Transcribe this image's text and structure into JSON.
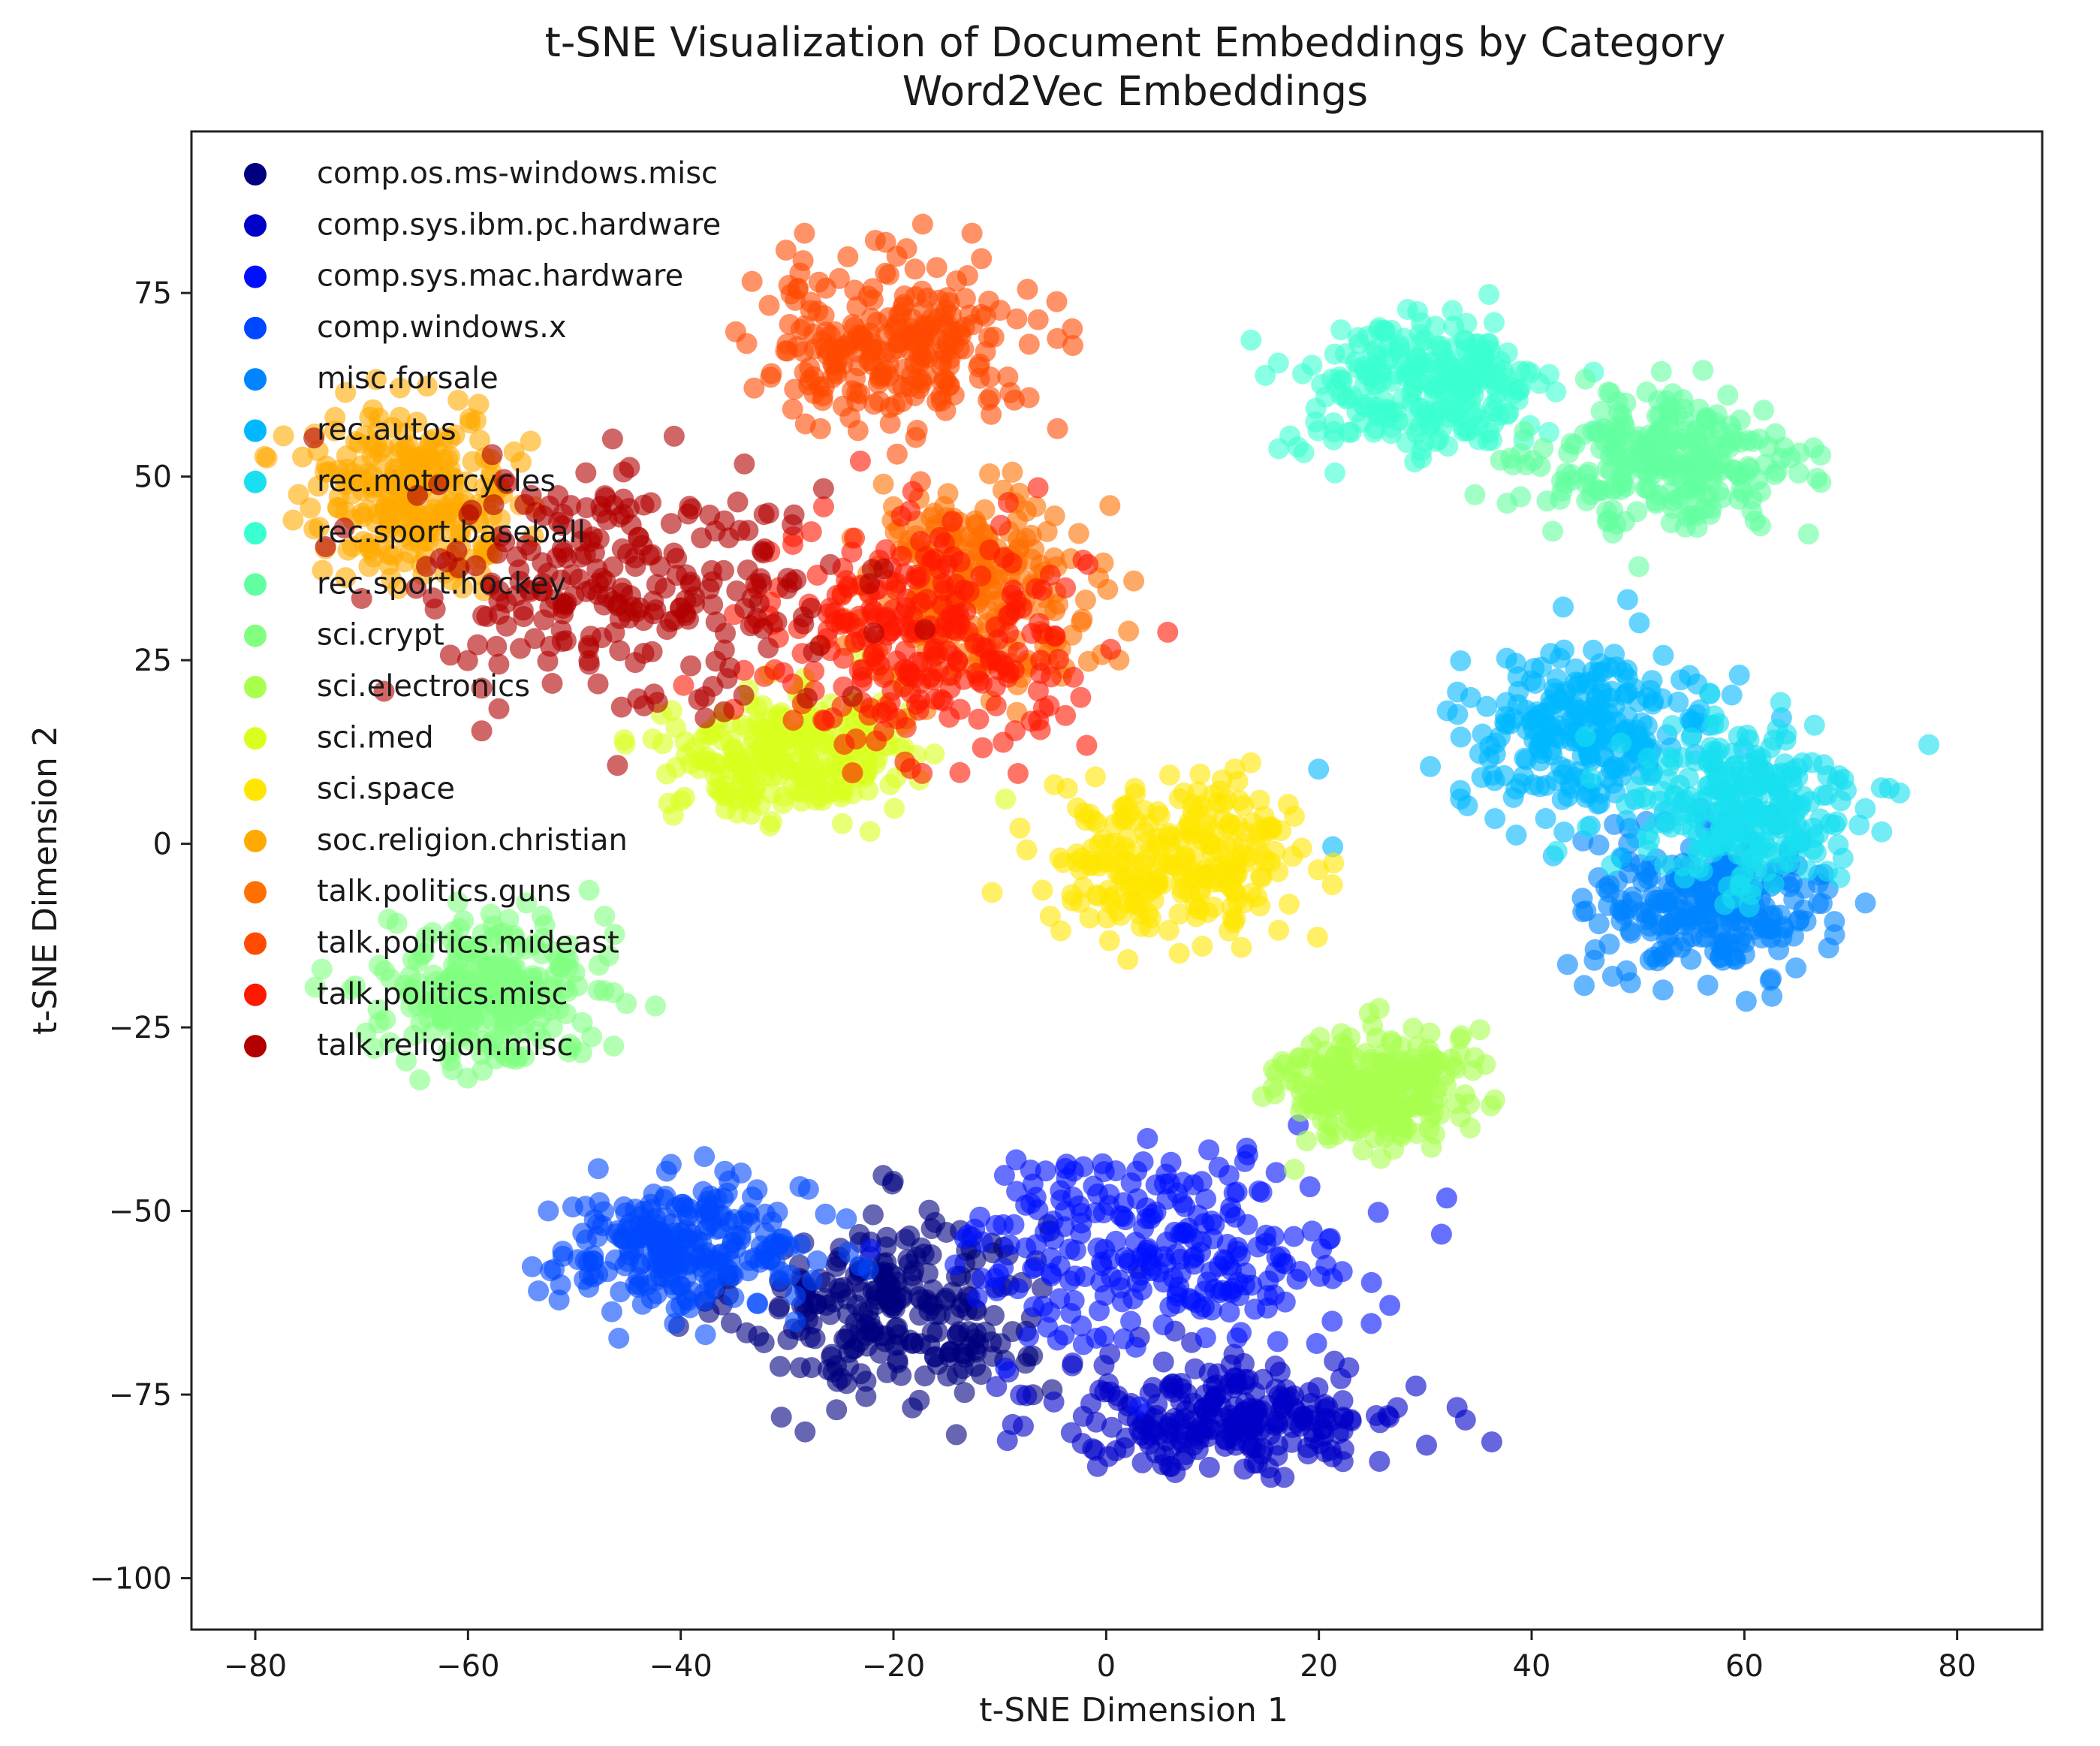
{
  "chart_data": {
    "type": "scatter",
    "title": "t-SNE Visualization of Document Embeddings by Category",
    "subtitle": "Word2Vec Embeddings",
    "xlabel": "t-SNE Dimension 1",
    "ylabel": "t-SNE Dimension 2",
    "xlim": [
      -86,
      88
    ],
    "ylim": [
      -107,
      97
    ],
    "xticks": [
      -80,
      -60,
      -40,
      -20,
      0,
      20,
      40,
      60,
      80
    ],
    "yticks": [
      75,
      50,
      25,
      0,
      -25,
      -50,
      -75,
      -100
    ],
    "xtick_labels": [
      "−80",
      "−60",
      "−40",
      "−20",
      "0",
      "20",
      "40",
      "60",
      "80"
    ],
    "ytick_labels": [
      "75",
      "50",
      "25",
      "0",
      "−25",
      "−50",
      "−75",
      "−100"
    ],
    "grid": false,
    "legend_position": "top-left",
    "series": [
      {
        "name": "comp.os.ms-windows.misc",
        "color": "#00007f",
        "center": [
          -20,
          -63
        ],
        "spread": [
          13,
          12
        ]
      },
      {
        "name": "comp.sys.ibm.pc.hardware",
        "color": "#0000c8",
        "center": [
          12,
          -78
        ],
        "spread": [
          15,
          7
        ]
      },
      {
        "name": "comp.sys.mac.hardware",
        "color": "#0010ff",
        "center": [
          5,
          -55
        ],
        "spread": [
          17,
          12
        ]
      },
      {
        "name": "comp.windows.x",
        "color": "#0048ff",
        "center": [
          -40,
          -55
        ],
        "spread": [
          11,
          8
        ]
      },
      {
        "name": "misc.forsale",
        "color": "#0084ff",
        "center": [
          57,
          -8
        ],
        "spread": [
          10,
          9
        ]
      },
      {
        "name": "rec.autos",
        "color": "#00b8ff",
        "center": [
          45,
          15
        ],
        "spread": [
          11,
          10
        ]
      },
      {
        "name": "rec.motorcycles",
        "color": "#18e0f0",
        "center": [
          60,
          5
        ],
        "spread": [
          10,
          11
        ]
      },
      {
        "name": "rec.sport.baseball",
        "color": "#3affd0",
        "center": [
          30,
          62
        ],
        "spread": [
          11,
          9
        ]
      },
      {
        "name": "rec.sport.hockey",
        "color": "#62ffa0",
        "center": [
          53,
          52
        ],
        "spread": [
          11,
          8
        ]
      },
      {
        "name": "sci.crypt",
        "color": "#80ff80",
        "center": [
          -58,
          -20
        ],
        "spread": [
          9,
          9
        ]
      },
      {
        "name": "sci.electronics",
        "color": "#a8ff4e",
        "center": [
          25,
          -33
        ],
        "spread": [
          8,
          7
        ]
      },
      {
        "name": "sci.med",
        "color": "#d8ff1e",
        "center": [
          -30,
          12
        ],
        "spread": [
          10,
          8
        ]
      },
      {
        "name": "sci.space",
        "color": "#ffe600",
        "center": [
          7,
          -2
        ],
        "spread": [
          11,
          9
        ]
      },
      {
        "name": "soc.religion.christian",
        "color": "#ffaa00",
        "center": [
          -65,
          48
        ],
        "spread": [
          9,
          10
        ]
      },
      {
        "name": "talk.politics.guns",
        "color": "#ff7000",
        "center": [
          -12,
          35
        ],
        "spread": [
          10,
          12
        ]
      },
      {
        "name": "talk.politics.mideast",
        "color": "#ff4a00",
        "center": [
          -20,
          68
        ],
        "spread": [
          12,
          10
        ]
      },
      {
        "name": "talk.politics.misc",
        "color": "#ff1800",
        "center": [
          -18,
          28
        ],
        "spread": [
          14,
          14
        ]
      },
      {
        "name": "talk.religion.misc",
        "color": "#b20000",
        "center": [
          -45,
          35
        ],
        "spread": [
          18,
          15
        ]
      }
    ]
  }
}
